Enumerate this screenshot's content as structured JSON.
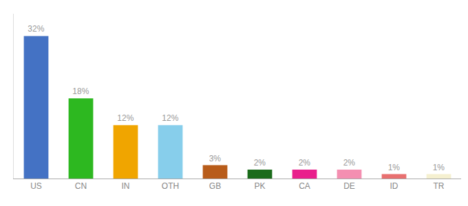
{
  "chart_data": {
    "type": "bar",
    "categories": [
      "US",
      "CN",
      "IN",
      "OTH",
      "GB",
      "PK",
      "CA",
      "DE",
      "ID",
      "TR"
    ],
    "values": [
      32,
      18,
      12,
      12,
      3,
      2,
      2,
      2,
      1,
      1
    ],
    "value_labels": [
      "32%",
      "18%",
      "12%",
      "12%",
      "3%",
      "2%",
      "2%",
      "2%",
      "1%",
      "1%"
    ],
    "colors": [
      "#4472c4",
      "#2db820",
      "#f0a500",
      "#87ceeb",
      "#b85c1a",
      "#1a6b1a",
      "#e91e8c",
      "#f48fb1",
      "#e87070",
      "#f5f0d0"
    ],
    "ylim": [
      0,
      37
    ],
    "grid": false,
    "data_labels": true,
    "tick_labels": "x"
  }
}
